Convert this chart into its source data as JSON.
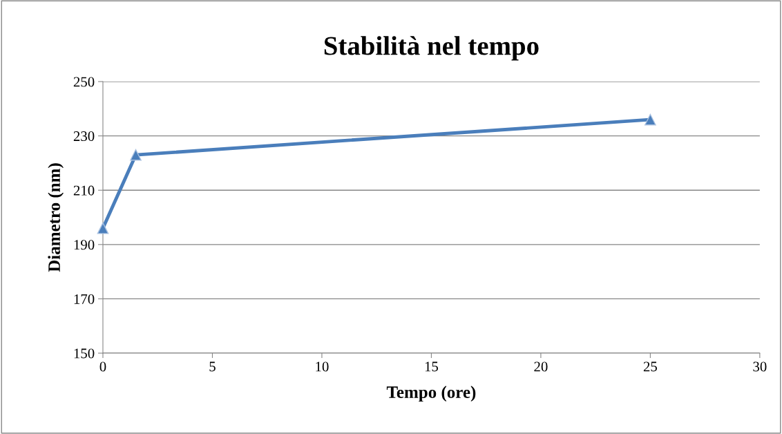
{
  "chart_data": {
    "type": "line",
    "title": "Stabilità nel tempo",
    "xlabel": "Tempo (ore)",
    "ylabel": "Diametro (nm)",
    "x": [
      0,
      1.5,
      25
    ],
    "series": [
      {
        "color": "#4a7ebb",
        "values": [
          196,
          223,
          236
        ]
      }
    ],
    "xlim": [
      0,
      30
    ],
    "xticks": [
      0,
      5,
      10,
      15,
      20,
      25,
      30
    ],
    "ylim": [
      150,
      250
    ],
    "yticks": [
      150,
      170,
      190,
      210,
      230,
      250
    ],
    "grid": "y",
    "marker": "triangle",
    "line_style": "solid",
    "legend": false
  }
}
